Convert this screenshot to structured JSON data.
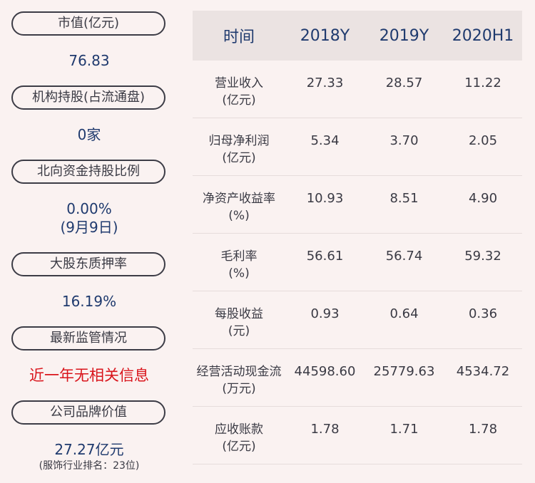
{
  "left": {
    "market_value_label": "市值(亿元)",
    "market_value": "76.83",
    "inst_holding_label": "机构持股(占流通盘)",
    "inst_holding": "0家",
    "north_label": "北向资金持股比例",
    "north_value": "0.00%",
    "north_date": "(9月9日)",
    "pledge_label": "大股东质押率",
    "pledge_value": "16.19%",
    "reg_label": "最新监管情况",
    "reg_value": "近一年无相关信息",
    "brand_label": "公司品牌价值",
    "brand_value": "27.27亿元",
    "brand_rank": "(服饰行业排名：23位)"
  },
  "table": {
    "headers": [
      "时间",
      "2018Y",
      "2019Y",
      "2020H1"
    ],
    "rows": [
      {
        "name": "营业收入",
        "unit": "(亿元)",
        "v": [
          "27.33",
          "28.57",
          "11.22"
        ]
      },
      {
        "name": "归母净利润",
        "unit": "(亿元)",
        "v": [
          "5.34",
          "3.70",
          "2.05"
        ]
      },
      {
        "name": "净资产收益率",
        "unit": "(%)",
        "v": [
          "10.93",
          "8.51",
          "4.90"
        ]
      },
      {
        "name": "毛利率",
        "unit": "(%)",
        "v": [
          "56.61",
          "56.74",
          "59.32"
        ]
      },
      {
        "name": "每股收益",
        "unit": "(元)",
        "v": [
          "0.93",
          "0.64",
          "0.36"
        ]
      },
      {
        "name": "经营活动现金流",
        "unit": "(万元)",
        "v": [
          "44598.60",
          "25779.63",
          "4534.72"
        ]
      },
      {
        "name": "应收账款",
        "unit": "(亿元)",
        "v": [
          "1.78",
          "1.71",
          "1.78"
        ]
      }
    ]
  }
}
